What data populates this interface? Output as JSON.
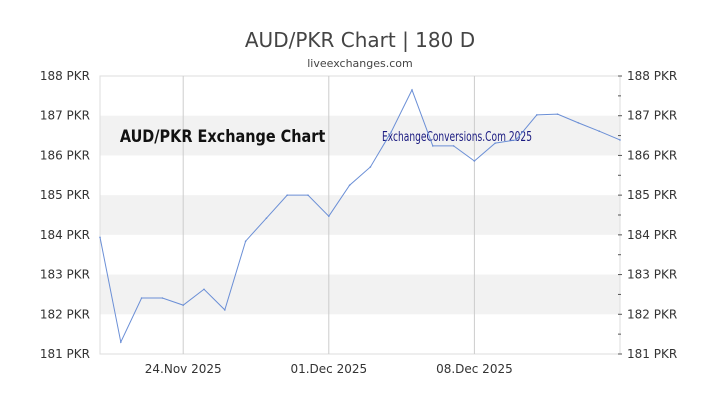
{
  "chart_data": {
    "type": "line",
    "title": "AUD/PKR Chart | 180 D",
    "subtitle": "liveexchanges.com",
    "watermark_left": "AUD/PKR Exchange Chart",
    "watermark_right": "ExchangeConversions.Com 2025",
    "xlabel": "",
    "ylabel": "",
    "ylim": [
      181,
      188
    ],
    "y_ticks": [
      "181 PKR",
      "182 PKR",
      "183 PKR",
      "184 PKR",
      "185 PKR",
      "186 PKR",
      "187 PKR",
      "188 PKR"
    ],
    "x_ticks": [
      {
        "label": "24.Nov 2025",
        "index": 4
      },
      {
        "label": "01.Dec 2025",
        "index": 11
      },
      {
        "label": "08.Dec 2025",
        "index": 18
      }
    ],
    "grid": true,
    "series": [
      {
        "name": "AUD/PKR",
        "color": "#6b8fd6",
        "values": [
          183.94,
          181.3,
          182.41,
          182.41,
          182.23,
          182.63,
          182.11,
          183.84,
          184.42,
          185.0,
          185.0,
          184.47,
          185.25,
          185.71,
          186.59,
          187.65,
          186.24,
          186.24,
          185.86,
          186.31,
          186.39,
          187.02,
          187.04,
          186.82,
          186.61,
          186.39
        ]
      }
    ]
  }
}
